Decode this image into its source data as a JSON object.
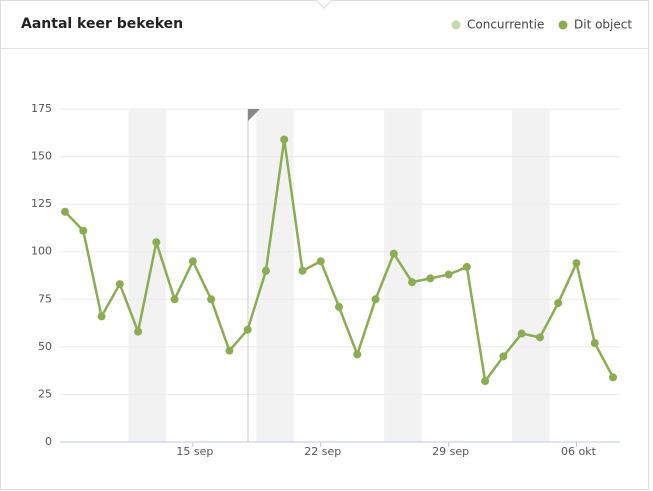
{
  "chart_data": {
    "type": "line",
    "title": "Aantal keer bekeken",
    "categories": [
      null,
      null,
      null,
      null,
      null,
      null,
      null,
      "15 sep",
      null,
      null,
      null,
      null,
      null,
      null,
      "22 sep",
      null,
      null,
      null,
      null,
      null,
      null,
      "29 sep",
      null,
      null,
      null,
      null,
      null,
      null,
      "06 okt",
      null,
      null
    ],
    "series": [
      {
        "name": "Concurrentie",
        "color": "#c8d8a8",
        "values": [
          null,
          null,
          null,
          null,
          null,
          null,
          null,
          null,
          null,
          null,
          null,
          null,
          null,
          null,
          null,
          null,
          null,
          null,
          null,
          null,
          null,
          null,
          null,
          null,
          null,
          null,
          null,
          null,
          null,
          null,
          null
        ]
      },
      {
        "name": "Dit object",
        "color": "#8aad52",
        "values": [
          121,
          111,
          66,
          83,
          58,
          105,
          75,
          95,
          75,
          48,
          59,
          90,
          159,
          90,
          95,
          71,
          46,
          75,
          99,
          84,
          86,
          88,
          92,
          32,
          45,
          57,
          55,
          73,
          94,
          52,
          34
        ]
      }
    ],
    "ylim": [
      0,
      175
    ],
    "yticks": [
      0,
      25,
      50,
      75,
      100,
      125,
      150,
      175
    ],
    "grid": true
  }
}
